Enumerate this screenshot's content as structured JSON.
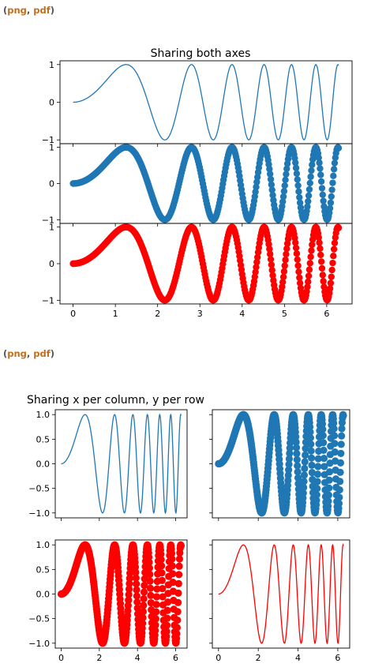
{
  "links": [
    {
      "open": "(",
      "png": "png",
      "sep": ", ",
      "pdf": "pdf",
      "close": ")"
    },
    {
      "open": "(",
      "png": "png",
      "sep": ", ",
      "pdf": "pdf",
      "close": ")"
    }
  ],
  "colors": {
    "blue": "#1f77b4",
    "red": "#ff0000",
    "link": "#c26e1a"
  },
  "chart_data": [
    {
      "figure": "fig1",
      "type": "line",
      "title": "Sharing both axes",
      "shared_x": true,
      "shared_y": true,
      "xlim": [
        -0.31,
        6.6
      ],
      "ylim": [
        -1.1,
        1.1
      ],
      "xticks": [
        "0",
        "1",
        "2",
        "3",
        "4",
        "5",
        "6"
      ],
      "yticks": [
        "1",
        "0",
        "−1"
      ],
      "panels": [
        {
          "type": "line",
          "function": "y = sin(x^2)",
          "x_range": [
            0,
            6.2832
          ],
          "n_points": 400,
          "color": "blue"
        },
        {
          "type": "scatter",
          "function": "y = sin(x^2)",
          "x_range": [
            0,
            6.2832
          ],
          "n_points": 400,
          "color": "blue"
        },
        {
          "type": "scatter",
          "function": "y = 2*sin(x^2)^2 - 1",
          "x_range": [
            0,
            6.2832
          ],
          "n_points": 400,
          "color": "red"
        }
      ]
    },
    {
      "figure": "fig2",
      "type": "line",
      "title": "Sharing x per column, y per row",
      "shared_x": "column",
      "shared_y": "row",
      "xlim": [
        -0.31,
        6.6
      ],
      "ylim": [
        -1.1,
        1.1
      ],
      "xticks": [
        "0",
        "2",
        "4",
        "6"
      ],
      "yticks": [
        "1.0",
        "0.5",
        "0.0",
        "−0.5",
        "−1.0"
      ],
      "panels": [
        {
          "position": "top-left",
          "type": "line",
          "function": "y = sin(x^2)",
          "x_range": [
            0,
            6.2832
          ],
          "n_points": 400,
          "color": "blue"
        },
        {
          "position": "top-right",
          "type": "scatter",
          "function": "y = sin(x^2)",
          "x_range": [
            0,
            6.2832
          ],
          "n_points": 400,
          "color": "blue"
        },
        {
          "position": "bottom-left",
          "type": "scatter",
          "function": "y = 2*sin(x^2)^2 - 1",
          "x_range": [
            0,
            6.2832
          ],
          "n_points": 400,
          "color": "red"
        },
        {
          "position": "bottom-right",
          "type": "line",
          "function": "y = 2*sin(x^2)^2 - 1",
          "x_range": [
            0,
            6.2832
          ],
          "n_points": 400,
          "color": "red"
        }
      ]
    }
  ]
}
